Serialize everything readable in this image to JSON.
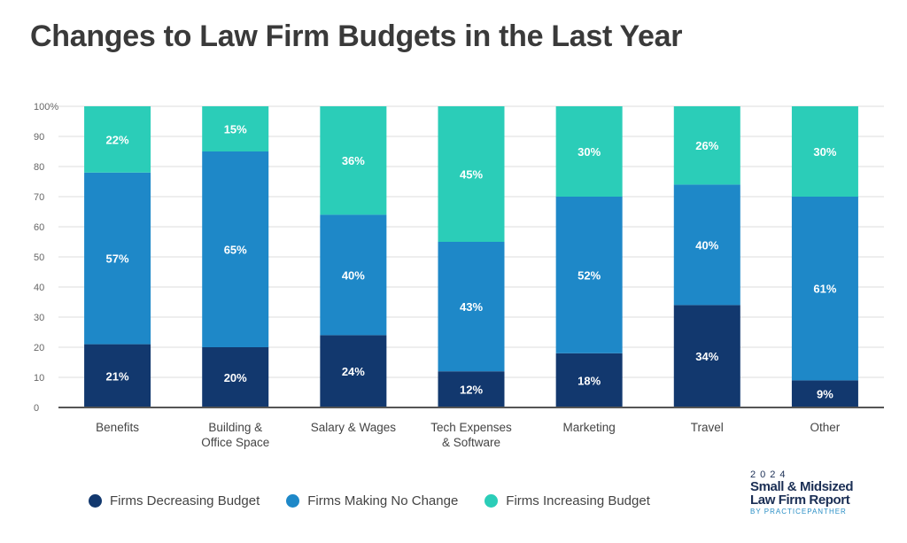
{
  "chart_data": {
    "type": "bar",
    "stacked": true,
    "title": "Changes to Law Firm Budgets in the Last Year",
    "categories": [
      [
        "Benefits"
      ],
      [
        "Building &",
        "Office Space"
      ],
      [
        "Salary & Wages"
      ],
      [
        "Tech Expenses",
        "& Software"
      ],
      [
        "Marketing"
      ],
      [
        "Travel"
      ],
      [
        "Other"
      ]
    ],
    "series": [
      {
        "name": "Firms Decreasing Budget",
        "color": "#12386e",
        "values": [
          21,
          20,
          24,
          12,
          18,
          34,
          9
        ]
      },
      {
        "name": "Firms Making No Change",
        "color": "#1e88c8",
        "values": [
          57,
          65,
          40,
          43,
          52,
          40,
          61
        ]
      },
      {
        "name": "Firms Increasing Budget",
        "color": "#2bcdb8",
        "values": [
          22,
          15,
          36,
          45,
          30,
          26,
          30
        ]
      }
    ],
    "ylim": [
      0,
      100
    ],
    "yticks": [
      "0",
      "10",
      "20",
      "30",
      "40",
      "50",
      "60",
      "70",
      "80",
      "90",
      "100%"
    ],
    "grid": true,
    "legend_position": "bottom-left",
    "label_suffix": "%"
  },
  "logo": {
    "year": "2024",
    "line1": "Small & Midsized",
    "line2": "Law Firm Report",
    "byline": "BY PRACTICEPANTHER"
  }
}
